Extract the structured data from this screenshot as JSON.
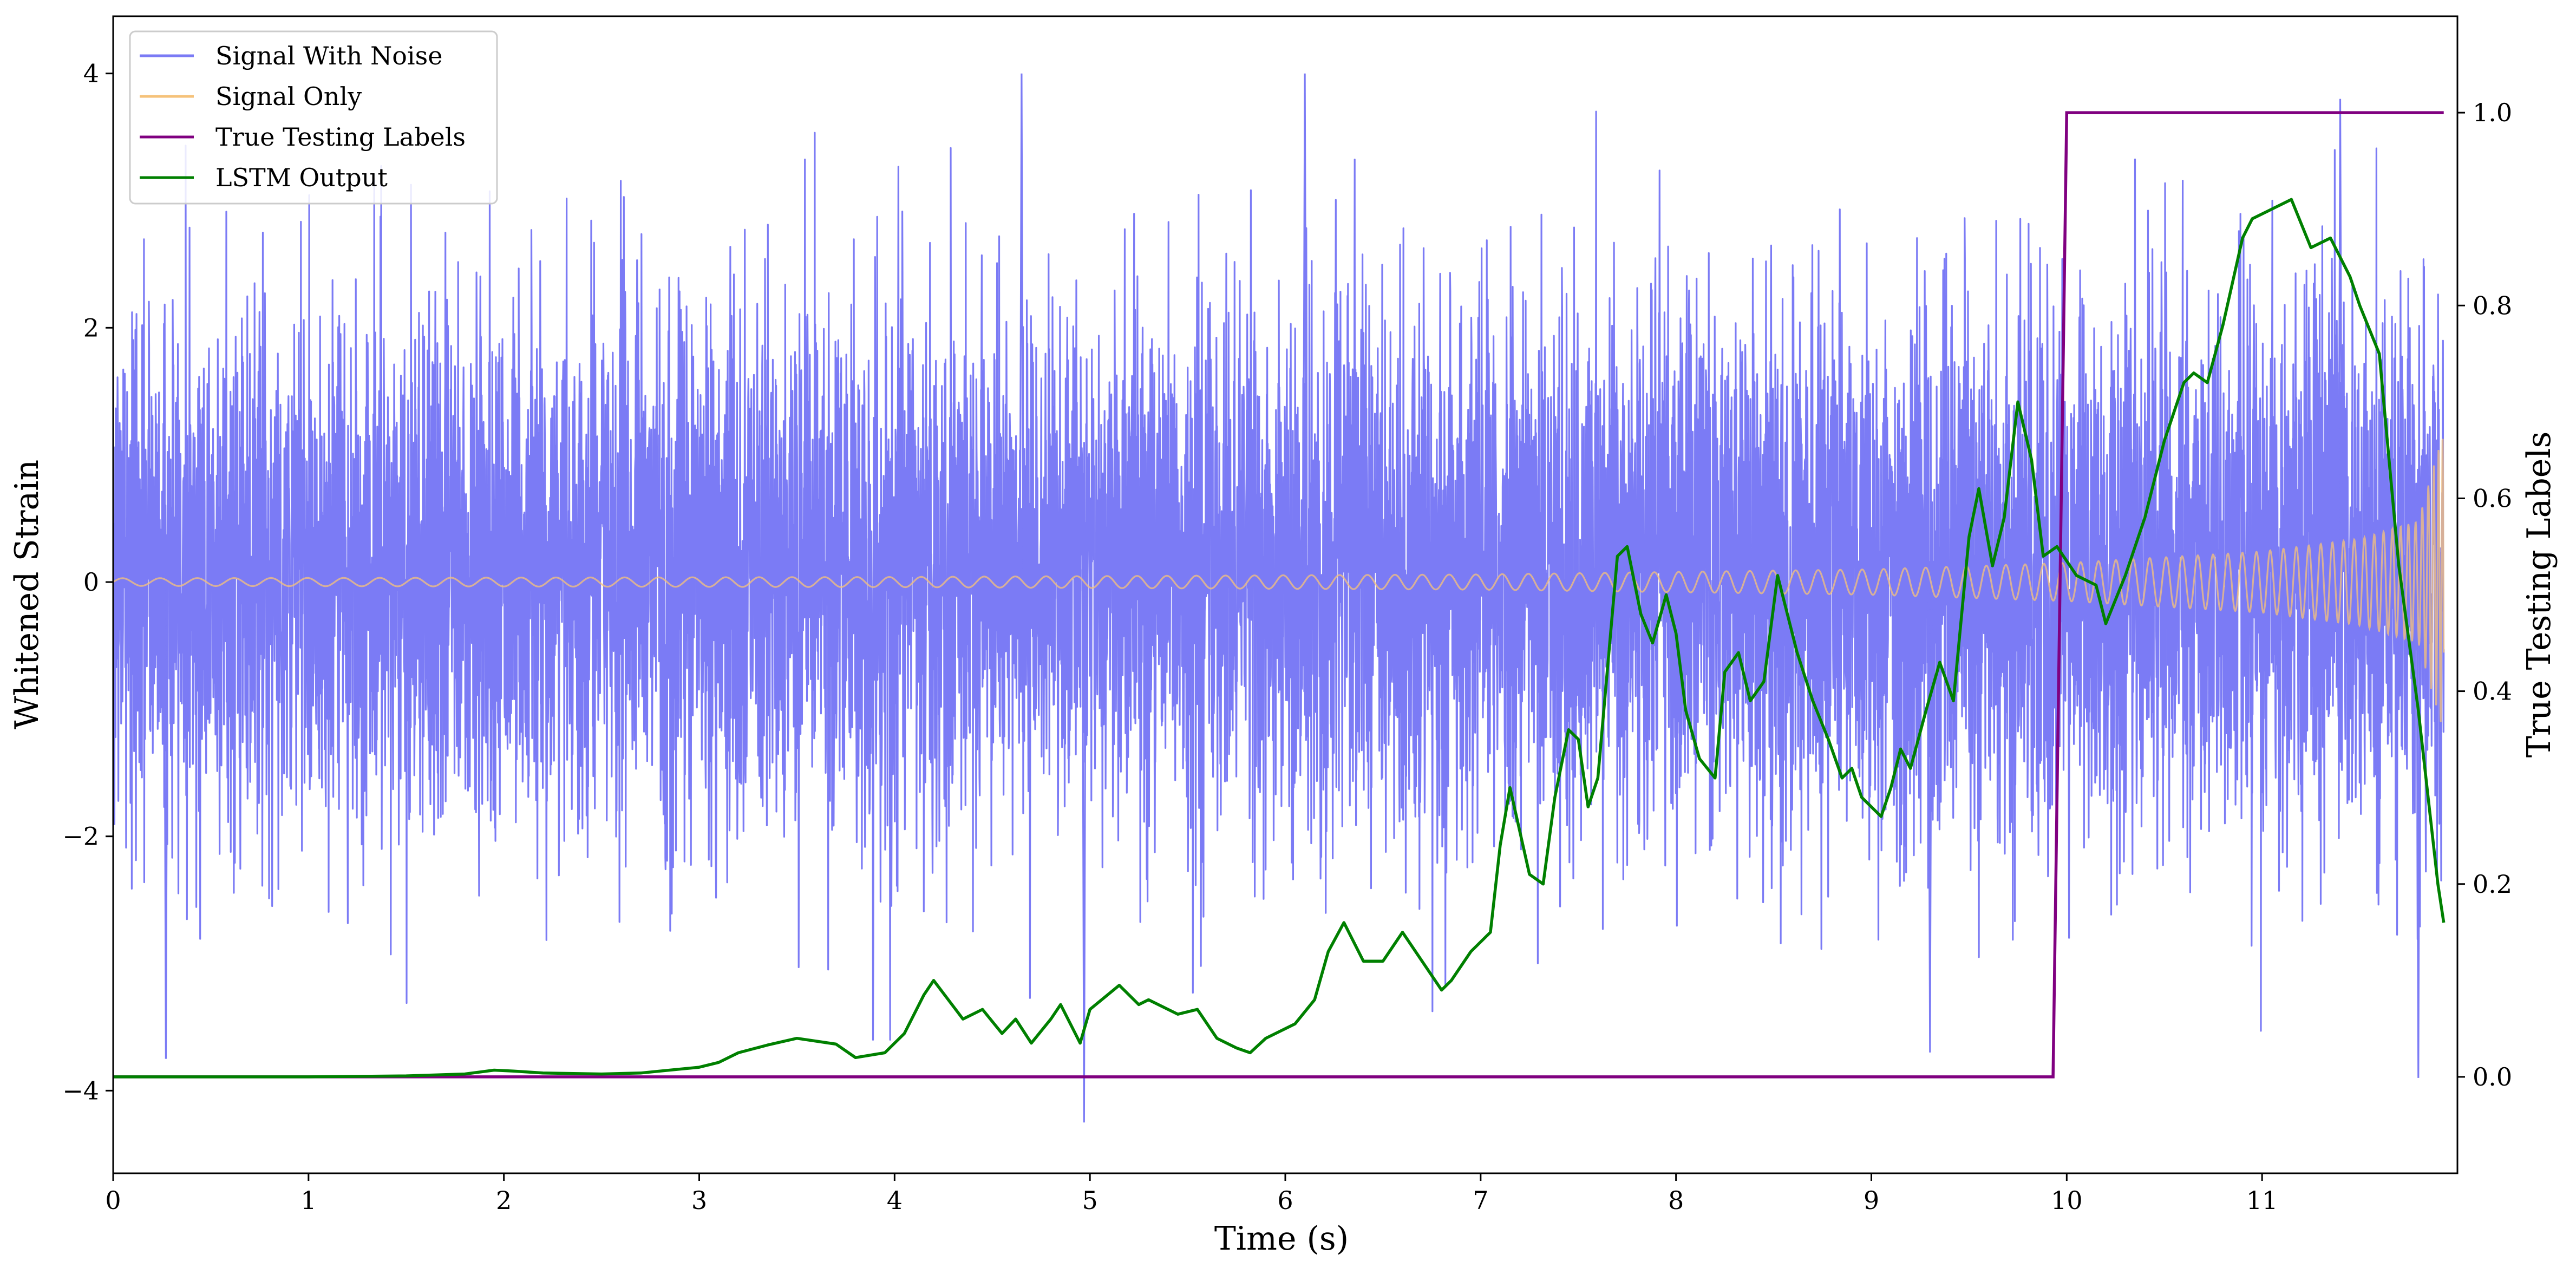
{
  "chart_data": {
    "type": "line",
    "xlabel": "Time (s)",
    "ylabel": "Whitened Strain",
    "y2label": "True Testing Labels",
    "xlim": [
      0,
      12
    ],
    "ylim": [
      -4.65,
      4.45
    ],
    "y2lim": [
      -0.1,
      1.1
    ],
    "x_ticks": [
      0,
      1,
      2,
      3,
      4,
      5,
      6,
      7,
      8,
      9,
      10,
      11
    ],
    "x_tick_labels": [
      "0",
      "1",
      "2",
      "3",
      "4",
      "5",
      "6",
      "7",
      "8",
      "9",
      "10",
      "11"
    ],
    "y_ticks": [
      -4,
      -2,
      0,
      2,
      4
    ],
    "y_tick_labels": [
      "−4",
      "−2",
      "0",
      "2",
      "4"
    ],
    "y2_ticks": [
      0.0,
      0.2,
      0.4,
      0.6,
      0.8,
      1.0
    ],
    "y2_tick_labels": [
      "0.0",
      "0.2",
      "0.4",
      "0.6",
      "0.8",
      "1.0"
    ],
    "grid": false,
    "legend_position": "top-left",
    "legend": [
      "Signal With Noise",
      "Signal Only",
      "True Testing Labels",
      "LSTM Output"
    ],
    "series": [
      {
        "name": "Signal With Noise",
        "axis": "left",
        "color": "#7b7bf5",
        "description_of_shape": "dense noise",
        "typical_range": [
          -2.6,
          2.8
        ],
        "peak_values": [
          {
            "x": 4.65,
            "y": 4.0
          },
          {
            "x": 6.1,
            "y": 4.0
          },
          {
            "x": 11.4,
            "y": 3.8
          },
          {
            "x": 4.97,
            "y": -4.25
          },
          {
            "x": 0.27,
            "y": -3.75
          },
          {
            "x": 9.3,
            "y": -3.7
          },
          {
            "x": 11.8,
            "y": -3.9
          }
        ]
      },
      {
        "name": "Signal Only",
        "axis": "left",
        "color": "#f5c27a",
        "amplitude_points": [
          {
            "x": 0.0,
            "amp": 0.03
          },
          {
            "x": 4.0,
            "amp": 0.04
          },
          {
            "x": 7.0,
            "amp": 0.06
          },
          {
            "x": 9.0,
            "amp": 0.1
          },
          {
            "x": 10.0,
            "amp": 0.15
          },
          {
            "x": 11.0,
            "amp": 0.24
          },
          {
            "x": 11.5,
            "amp": 0.34
          },
          {
            "x": 11.8,
            "amp": 0.48
          },
          {
            "x": 11.93,
            "amp": 1.2
          }
        ]
      },
      {
        "name": "True Testing Labels",
        "axis": "right",
        "color": "#800080",
        "x": [
          0.0,
          9.93,
          10.0,
          11.93
        ],
        "y": [
          0.0,
          0.0,
          1.0,
          1.0
        ]
      },
      {
        "name": "LSTM Output",
        "axis": "right",
        "color": "#008000",
        "x": [
          0.0,
          0.5,
          1.0,
          1.5,
          1.8,
          1.95,
          2.05,
          2.2,
          2.5,
          2.7,
          2.8,
          3.0,
          3.1,
          3.2,
          3.35,
          3.5,
          3.7,
          3.8,
          3.95,
          4.05,
          4.15,
          4.2,
          4.35,
          4.45,
          4.55,
          4.62,
          4.7,
          4.8,
          4.85,
          4.95,
          5.0,
          5.15,
          5.25,
          5.3,
          5.45,
          5.55,
          5.65,
          5.75,
          5.82,
          5.9,
          6.05,
          6.15,
          6.22,
          6.3,
          6.4,
          6.5,
          6.6,
          6.7,
          6.8,
          6.85,
          6.95,
          7.05,
          7.1,
          7.15,
          7.25,
          7.32,
          7.38,
          7.45,
          7.5,
          7.55,
          7.6,
          7.7,
          7.75,
          7.82,
          7.88,
          7.95,
          8.0,
          8.05,
          8.12,
          8.2,
          8.25,
          8.32,
          8.38,
          8.45,
          8.52,
          8.62,
          8.7,
          8.78,
          8.85,
          8.9,
          8.95,
          9.05,
          9.1,
          9.15,
          9.2,
          9.28,
          9.35,
          9.42,
          9.5,
          9.55,
          9.62,
          9.68,
          9.75,
          9.82,
          9.88,
          9.95,
          10.05,
          10.15,
          10.2,
          10.3,
          10.4,
          10.5,
          10.6,
          10.65,
          10.72,
          10.8,
          10.9,
          10.95,
          11.05,
          11.15,
          11.25,
          11.35,
          11.45,
          11.5,
          11.6,
          11.65,
          11.7,
          11.8,
          11.9,
          11.93
        ],
        "y": [
          0.0,
          0.0,
          0.0,
          0.001,
          0.003,
          0.007,
          0.006,
          0.004,
          0.003,
          0.004,
          0.006,
          0.01,
          0.015,
          0.025,
          0.033,
          0.04,
          0.034,
          0.02,
          0.025,
          0.045,
          0.085,
          0.1,
          0.06,
          0.07,
          0.045,
          0.06,
          0.035,
          0.06,
          0.075,
          0.035,
          0.07,
          0.095,
          0.075,
          0.08,
          0.065,
          0.07,
          0.04,
          0.03,
          0.025,
          0.04,
          0.055,
          0.08,
          0.13,
          0.16,
          0.12,
          0.12,
          0.15,
          0.12,
          0.09,
          0.1,
          0.13,
          0.15,
          0.24,
          0.3,
          0.21,
          0.2,
          0.29,
          0.36,
          0.35,
          0.28,
          0.31,
          0.54,
          0.55,
          0.48,
          0.45,
          0.5,
          0.46,
          0.38,
          0.33,
          0.31,
          0.42,
          0.44,
          0.39,
          0.41,
          0.52,
          0.44,
          0.39,
          0.35,
          0.31,
          0.32,
          0.29,
          0.27,
          0.3,
          0.34,
          0.32,
          0.38,
          0.43,
          0.39,
          0.56,
          0.61,
          0.53,
          0.58,
          0.7,
          0.64,
          0.54,
          0.55,
          0.52,
          0.51,
          0.47,
          0.52,
          0.58,
          0.66,
          0.72,
          0.73,
          0.72,
          0.78,
          0.87,
          0.89,
          0.9,
          0.91,
          0.86,
          0.87,
          0.83,
          0.8,
          0.75,
          0.64,
          0.53,
          0.38,
          0.2,
          0.16
        ]
      }
    ]
  }
}
